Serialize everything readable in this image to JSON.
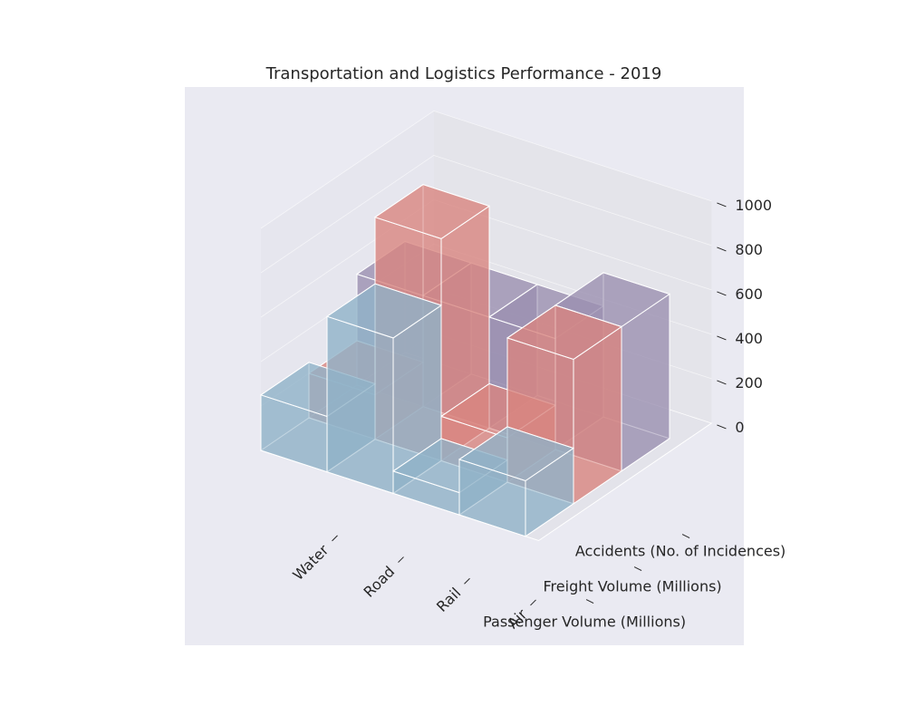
{
  "chart_data": {
    "type": "bar3d",
    "title": "Transportation and Logistics Performance - 2019",
    "categories": [
      "Water",
      "Road",
      "Rail",
      "Air"
    ],
    "series": [
      {
        "name": "Passenger Volume (Millions)",
        "values": [
          250,
          700,
          100,
          250
        ],
        "color": "#8fb3c9"
      },
      {
        "name": "Freight Volume (Millions)",
        "values": [
          200,
          1000,
          200,
          650
        ],
        "color": "#d9857f"
      },
      {
        "name": "Accidents (No. of Incidences)",
        "values": [
          500,
          500,
          500,
          650
        ],
        "color": "#9b8fb0"
      }
    ],
    "zlim": [
      0,
      1000
    ],
    "zticks": [
      "0",
      "200",
      "400",
      "600",
      "800",
      "1000"
    ],
    "grid": true
  }
}
